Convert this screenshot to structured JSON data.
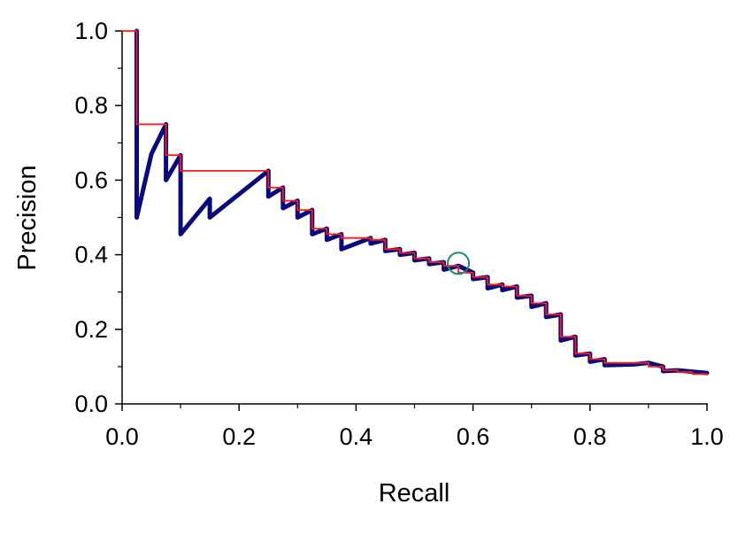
{
  "chart_data": {
    "type": "line",
    "xlabel": "Recall",
    "ylabel": "Precision",
    "xlim": [
      0.0,
      1.0
    ],
    "ylim": [
      0.0,
      1.0
    ],
    "x_ticks": [
      "0.0",
      "0.2",
      "0.4",
      "0.6",
      "0.8",
      "1.0"
    ],
    "y_ticks": [
      "0.0",
      "0.2",
      "0.4",
      "0.6",
      "0.8",
      "1.0"
    ],
    "grid": false,
    "legend": "none",
    "series": [
      {
        "color": "#0a0a7a",
        "style": "thick-line",
        "points": [
          [
            0.025,
            1.0
          ],
          [
            0.025,
            0.5
          ],
          [
            0.05,
            0.67
          ],
          [
            0.075,
            0.75
          ],
          [
            0.075,
            0.6
          ],
          [
            0.1,
            0.667
          ],
          [
            0.1,
            0.455
          ],
          [
            0.15,
            0.55
          ],
          [
            0.15,
            0.5
          ],
          [
            0.25,
            0.625
          ],
          [
            0.25,
            0.556
          ],
          [
            0.275,
            0.58
          ],
          [
            0.275,
            0.525
          ],
          [
            0.3,
            0.545
          ],
          [
            0.3,
            0.5
          ],
          [
            0.325,
            0.52
          ],
          [
            0.325,
            0.455
          ],
          [
            0.35,
            0.47
          ],
          [
            0.35,
            0.44
          ],
          [
            0.375,
            0.455
          ],
          [
            0.375,
            0.415
          ],
          [
            0.425,
            0.445
          ],
          [
            0.425,
            0.43
          ],
          [
            0.45,
            0.44
          ],
          [
            0.45,
            0.41
          ],
          [
            0.475,
            0.415
          ],
          [
            0.475,
            0.4
          ],
          [
            0.5,
            0.405
          ],
          [
            0.5,
            0.385
          ],
          [
            0.525,
            0.39
          ],
          [
            0.525,
            0.375
          ],
          [
            0.55,
            0.38
          ],
          [
            0.55,
            0.36
          ],
          [
            0.575,
            0.37
          ],
          [
            0.6,
            0.352
          ],
          [
            0.6,
            0.335
          ],
          [
            0.625,
            0.34
          ],
          [
            0.625,
            0.31
          ],
          [
            0.65,
            0.32
          ],
          [
            0.65,
            0.305
          ],
          [
            0.675,
            0.315
          ],
          [
            0.675,
            0.285
          ],
          [
            0.7,
            0.29
          ],
          [
            0.7,
            0.26
          ],
          [
            0.725,
            0.27
          ],
          [
            0.725,
            0.233
          ],
          [
            0.75,
            0.24
          ],
          [
            0.75,
            0.17
          ],
          [
            0.775,
            0.18
          ],
          [
            0.775,
            0.13
          ],
          [
            0.8,
            0.135
          ],
          [
            0.8,
            0.113
          ],
          [
            0.825,
            0.12
          ],
          [
            0.825,
            0.104
          ],
          [
            0.875,
            0.106
          ],
          [
            0.9,
            0.11
          ],
          [
            0.925,
            0.1
          ],
          [
            0.925,
            0.088
          ],
          [
            0.95,
            0.09
          ],
          [
            1.0,
            0.083
          ]
        ]
      },
      {
        "color": "#ff1a1a",
        "style": "thin-step",
        "points": [
          [
            0.0,
            1.0
          ],
          [
            0.025,
            1.0
          ],
          [
            0.025,
            0.75
          ],
          [
            0.075,
            0.75
          ],
          [
            0.075,
            0.667
          ],
          [
            0.1,
            0.667
          ],
          [
            0.1,
            0.625
          ],
          [
            0.25,
            0.625
          ],
          [
            0.25,
            0.58
          ],
          [
            0.275,
            0.58
          ],
          [
            0.275,
            0.545
          ],
          [
            0.3,
            0.545
          ],
          [
            0.3,
            0.52
          ],
          [
            0.325,
            0.52
          ],
          [
            0.325,
            0.47
          ],
          [
            0.35,
            0.47
          ],
          [
            0.35,
            0.455
          ],
          [
            0.375,
            0.455
          ],
          [
            0.375,
            0.445
          ],
          [
            0.425,
            0.445
          ],
          [
            0.425,
            0.44
          ],
          [
            0.45,
            0.44
          ],
          [
            0.45,
            0.415
          ],
          [
            0.475,
            0.415
          ],
          [
            0.475,
            0.405
          ],
          [
            0.5,
            0.405
          ],
          [
            0.5,
            0.39
          ],
          [
            0.525,
            0.39
          ],
          [
            0.525,
            0.38
          ],
          [
            0.55,
            0.38
          ],
          [
            0.55,
            0.37
          ],
          [
            0.575,
            0.37
          ],
          [
            0.575,
            0.352
          ],
          [
            0.6,
            0.352
          ],
          [
            0.6,
            0.34
          ],
          [
            0.625,
            0.34
          ],
          [
            0.625,
            0.32
          ],
          [
            0.65,
            0.32
          ],
          [
            0.65,
            0.315
          ],
          [
            0.675,
            0.315
          ],
          [
            0.675,
            0.29
          ],
          [
            0.7,
            0.29
          ],
          [
            0.7,
            0.27
          ],
          [
            0.725,
            0.27
          ],
          [
            0.725,
            0.24
          ],
          [
            0.75,
            0.24
          ],
          [
            0.75,
            0.18
          ],
          [
            0.775,
            0.18
          ],
          [
            0.775,
            0.135
          ],
          [
            0.8,
            0.135
          ],
          [
            0.8,
            0.12
          ],
          [
            0.825,
            0.12
          ],
          [
            0.825,
            0.11
          ],
          [
            0.9,
            0.11
          ],
          [
            0.9,
            0.1
          ],
          [
            0.925,
            0.1
          ],
          [
            0.925,
            0.09
          ],
          [
            0.95,
            0.09
          ],
          [
            0.95,
            0.085
          ],
          [
            0.975,
            0.085
          ],
          [
            0.975,
            0.08
          ],
          [
            1.0,
            0.08
          ]
        ]
      }
    ],
    "marker": {
      "x": 0.575,
      "y": 0.377,
      "shape": "open-circle",
      "color": "#1a8a7a"
    }
  }
}
